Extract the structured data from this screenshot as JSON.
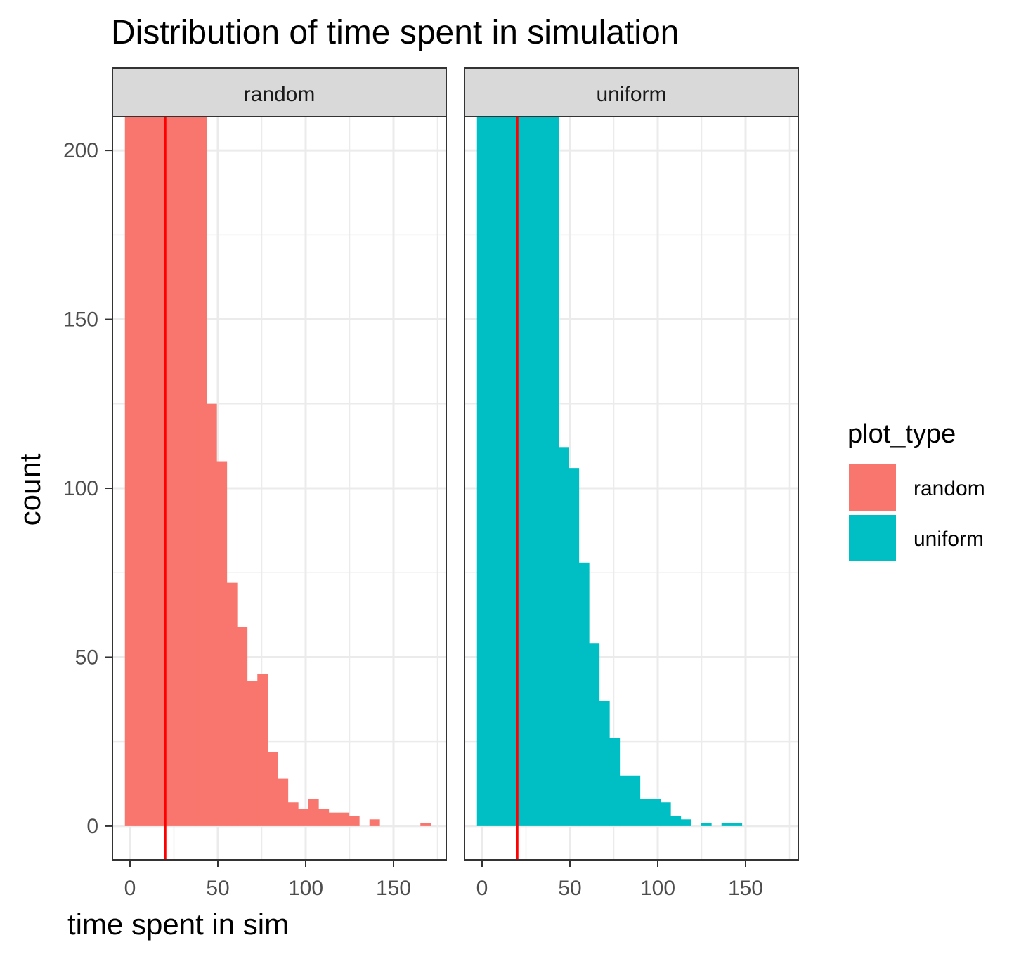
{
  "chart_data": {
    "type": "bar",
    "title": "Distribution of time spent in simulation",
    "xlabel": "time spent in sim",
    "ylabel": "count",
    "xlim": [
      -10,
      180
    ],
    "ylim": [
      -10,
      210
    ],
    "xticks": [
      0,
      50,
      100,
      150
    ],
    "yticks": [
      0,
      50,
      100,
      150,
      200
    ],
    "grid": true,
    "bin_width": 5.8,
    "reference_line": {
      "x": 20,
      "color": "#ff0000"
    },
    "legend": {
      "title": "plot_type",
      "position": "right"
    },
    "series": [
      {
        "name": "random",
        "color": "#F8766D",
        "panel_label": "random",
        "bins": [
          {
            "x": 0,
            "count": 210
          },
          {
            "x": 5.8,
            "count": 210
          },
          {
            "x": 11.6,
            "count": 210
          },
          {
            "x": 17.4,
            "count": 210
          },
          {
            "x": 23.2,
            "count": 210
          },
          {
            "x": 29,
            "count": 210
          },
          {
            "x": 34.8,
            "count": 210
          },
          {
            "x": 40.6,
            "count": 210
          },
          {
            "x": 46.4,
            "count": 125
          },
          {
            "x": 52.2,
            "count": 108
          },
          {
            "x": 58,
            "count": 72
          },
          {
            "x": 63.8,
            "count": 59
          },
          {
            "x": 69.6,
            "count": 43
          },
          {
            "x": 75.4,
            "count": 45
          },
          {
            "x": 81.2,
            "count": 22
          },
          {
            "x": 87,
            "count": 14
          },
          {
            "x": 92.8,
            "count": 7
          },
          {
            "x": 98.6,
            "count": 5
          },
          {
            "x": 104.4,
            "count": 8
          },
          {
            "x": 110.2,
            "count": 5
          },
          {
            "x": 116,
            "count": 4
          },
          {
            "x": 121.8,
            "count": 4
          },
          {
            "x": 127.6,
            "count": 3
          },
          {
            "x": 133.4,
            "count": 0
          },
          {
            "x": 139.2,
            "count": 2
          },
          {
            "x": 145,
            "count": 0
          },
          {
            "x": 150.8,
            "count": 0
          },
          {
            "x": 156.6,
            "count": 0
          },
          {
            "x": 162.4,
            "count": 0
          },
          {
            "x": 168.2,
            "count": 1
          }
        ]
      },
      {
        "name": "uniform",
        "color": "#00BFC4",
        "panel_label": "uniform",
        "bins": [
          {
            "x": 0,
            "count": 210
          },
          {
            "x": 5.8,
            "count": 210
          },
          {
            "x": 11.6,
            "count": 210
          },
          {
            "x": 17.4,
            "count": 210
          },
          {
            "x": 23.2,
            "count": 210
          },
          {
            "x": 29,
            "count": 210
          },
          {
            "x": 34.8,
            "count": 210
          },
          {
            "x": 40.6,
            "count": 210
          },
          {
            "x": 46.4,
            "count": 112
          },
          {
            "x": 52.2,
            "count": 106
          },
          {
            "x": 58,
            "count": 78
          },
          {
            "x": 63.8,
            "count": 54
          },
          {
            "x": 69.6,
            "count": 37
          },
          {
            "x": 75.4,
            "count": 26
          },
          {
            "x": 81.2,
            "count": 15
          },
          {
            "x": 87,
            "count": 15
          },
          {
            "x": 92.8,
            "count": 8
          },
          {
            "x": 98.6,
            "count": 8
          },
          {
            "x": 104.4,
            "count": 7
          },
          {
            "x": 110.2,
            "count": 3
          },
          {
            "x": 116,
            "count": 2
          },
          {
            "x": 121.8,
            "count": 0
          },
          {
            "x": 127.6,
            "count": 1
          },
          {
            "x": 133.4,
            "count": 0
          },
          {
            "x": 139.2,
            "count": 1
          },
          {
            "x": 145,
            "count": 1
          }
        ]
      }
    ]
  }
}
